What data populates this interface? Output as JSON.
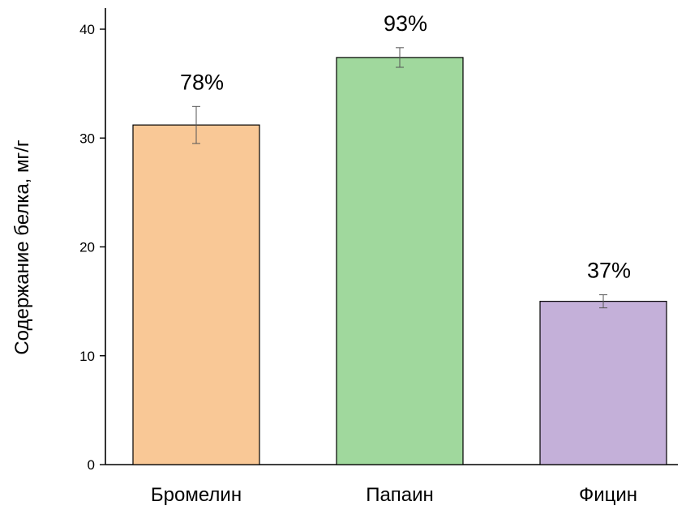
{
  "chart_data": {
    "type": "bar",
    "ylabel": "Содержание белка, мг/г",
    "xlabel": "",
    "ylim": [
      0,
      40
    ],
    "yticks": [
      0,
      10,
      20,
      30,
      40
    ],
    "categories": [
      "Бромелин",
      "Папаин",
      "Фицин"
    ],
    "values": [
      31.2,
      37.4,
      15.0
    ],
    "errors": [
      1.7,
      0.9,
      0.6
    ],
    "annotations": [
      "78%",
      "93%",
      "37%"
    ],
    "colors": [
      "#f9c896",
      "#a0d89d",
      "#c4b0d9"
    ],
    "grid": false,
    "legend": "none"
  }
}
